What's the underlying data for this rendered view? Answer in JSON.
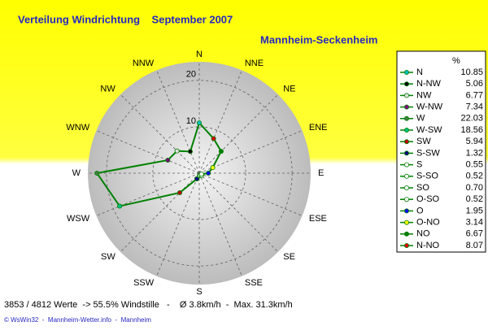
{
  "chart_data": {
    "type": "radar",
    "title": "Verteilung Windrichtung    September 2007",
    "subtitle": "Mannheim-Seckenheim",
    "direction": "counterclockwise",
    "categories": [
      "N",
      "NNW",
      "NW",
      "WNW",
      "W",
      "WSW",
      "SW",
      "SSW",
      "S",
      "SSE",
      "SE",
      "ESE",
      "E",
      "ENE",
      "NE",
      "NNE"
    ],
    "legend_title": "%",
    "legend_names": [
      "N",
      "N-NW",
      "NW",
      "W-NW",
      "W",
      "W-SW",
      "SW",
      "S-SW",
      "S",
      "S-SO",
      "SO",
      "O-SO",
      "O",
      "O-NO",
      "NO",
      "N-NO"
    ],
    "values": [
      10.85,
      5.06,
      6.77,
      7.34,
      22.03,
      18.56,
      5.94,
      1.32,
      0.55,
      0.52,
      0.7,
      0.52,
      1.95,
      3.14,
      6.67,
      8.07
    ],
    "value_labels": [
      "10.85",
      "5.06",
      "6.77",
      "7.34",
      "22.03",
      "18.56",
      "5.94",
      "1.32",
      "0.55",
      "0.52",
      "0.70",
      "0.52",
      "1.95",
      "3.14",
      "6.67",
      "8.07"
    ],
    "colors": [
      "#00c0c0",
      "#000000",
      "#e0e0e0",
      "#800080",
      "#408040",
      "#00c080",
      "#c00000",
      "#000080",
      "#ffffff",
      "#ffffff",
      "#ffffff",
      "#ffffff",
      "#0000ff",
      "#ffff00",
      "#008000",
      "#e00000"
    ],
    "line_color": "#008000",
    "ylim": [
      0,
      24
    ],
    "yticks": [
      10,
      20
    ],
    "grid": true,
    "footer": "3853 / 4812 Werte  -> 55.5% Windstille   -    Ø 3.8km/h  -  Max. 31.3km/h",
    "credit": "© WsWin32  -  Mannheim-Wetter.info  -  Mannheim"
  }
}
